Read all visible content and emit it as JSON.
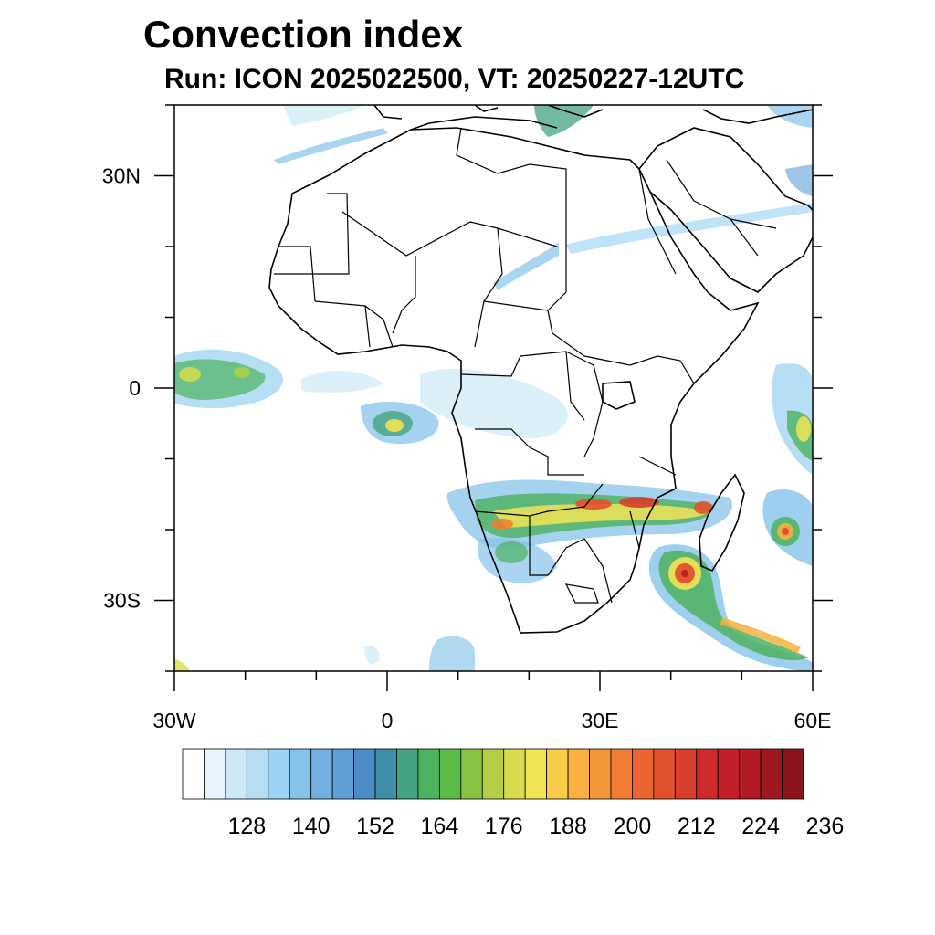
{
  "header": {
    "title": "Convection index",
    "subtitle": "Run: ICON 2025022500,  VT: 20250227-12UTC"
  },
  "map": {
    "region": "Africa",
    "lon_range": [
      -30,
      60
    ],
    "lat_range": [
      -40,
      40
    ],
    "x_ticks": [
      {
        "lon": -30,
        "label": "30W"
      },
      {
        "lon": 0,
        "label": "0"
      },
      {
        "lon": 30,
        "label": "30E"
      },
      {
        "lon": 60,
        "label": "60E"
      }
    ],
    "y_ticks": [
      {
        "lat": 30,
        "label": "30N"
      },
      {
        "lat": 0,
        "label": "0"
      },
      {
        "lat": -30,
        "label": "30S"
      }
    ]
  },
  "colorbar": {
    "colors": [
      "#ffffff",
      "#e8f4fb",
      "#cde9f7",
      "#b5def5",
      "#9dd4f3",
      "#86c3ea",
      "#74b1e0",
      "#5f9ed6",
      "#4a8bc8",
      "#3f8fa8",
      "#45a382",
      "#4cb25e",
      "#59bb46",
      "#87c542",
      "#b2cf45",
      "#d8dc4c",
      "#f2e355",
      "#f8cb48",
      "#f8b040",
      "#f6963a",
      "#f17d34",
      "#ea6530",
      "#e2512d",
      "#d93d2b",
      "#cf2a2a",
      "#c21f28",
      "#b11b24",
      "#9f1820",
      "#8a141b"
    ],
    "labels": [
      "128",
      "140",
      "152",
      "164",
      "176",
      "188",
      "200",
      "212",
      "224",
      "236"
    ]
  }
}
